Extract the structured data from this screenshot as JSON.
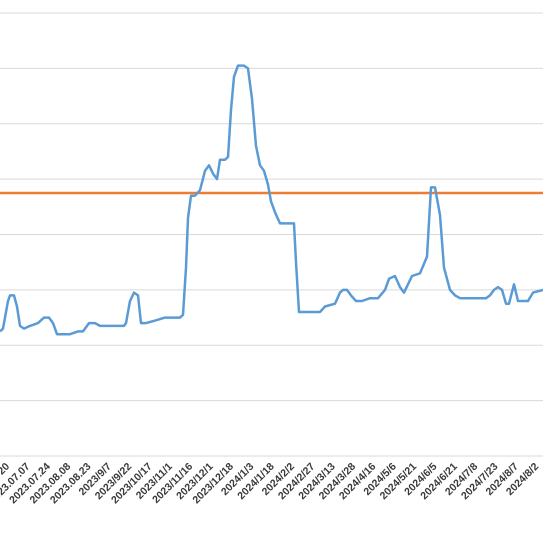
{
  "chart_data": {
    "type": "line",
    "title": "",
    "xlabel": "",
    "ylabel": "",
    "grid": true,
    "y_gridline_count": 8,
    "colors": {
      "series": "#5b9bd5",
      "reference": "#ed7d31",
      "grid": "#d9d9d9"
    },
    "x_tick_labels": [
      "20",
      "2023.07.07",
      "2023.07.24",
      "2023.08.08",
      "2023.08.23",
      "2023/9/7",
      "2023/9/22",
      "2023/10/17",
      "2023/11/1",
      "2023/11/16",
      "2023/12/1",
      "2023/12/18",
      "2024/1/3",
      "2024/1/18",
      "2024/2/2",
      "2024/2/27",
      "2024/3/13",
      "2024/3/28",
      "2024/4/16",
      "2024/5/6",
      "2024/5/21",
      "2024/6/5",
      "2024/6/21",
      "2024/7/8",
      "2024/7/23",
      "2024/8/7",
      "2024/8/2"
    ],
    "reference_line": {
      "y": 4.75
    },
    "series": [
      {
        "values": [
          [
            0,
            2.25
          ],
          [
            3,
            2.3
          ],
          [
            6,
            2.6
          ],
          [
            8,
            2.8
          ],
          [
            10,
            2.9
          ],
          [
            14,
            2.9
          ],
          [
            17,
            2.7
          ],
          [
            20,
            2.35
          ],
          [
            24,
            2.3
          ],
          [
            30,
            2.35
          ],
          [
            38,
            2.4
          ],
          [
            44,
            2.5
          ],
          [
            49,
            2.5
          ],
          [
            53,
            2.4
          ],
          [
            57,
            2.2
          ],
          [
            62,
            2.2
          ],
          [
            70,
            2.2
          ],
          [
            78,
            2.25
          ],
          [
            83,
            2.25
          ],
          [
            89,
            2.4
          ],
          [
            95,
            2.4
          ],
          [
            100,
            2.35
          ],
          [
            106,
            2.35
          ],
          [
            115,
            2.35
          ],
          [
            124,
            2.35
          ],
          [
            126,
            2.4
          ],
          [
            130,
            2.8
          ],
          [
            134,
            2.95
          ],
          [
            138,
            2.9
          ],
          [
            141,
            2.4
          ],
          [
            146,
            2.4
          ],
          [
            156,
            2.45
          ],
          [
            165,
            2.5
          ],
          [
            176,
            2.5
          ],
          [
            180,
            2.5
          ],
          [
            183,
            2.55
          ],
          [
            186,
            3.4
          ],
          [
            188,
            4.3
          ],
          [
            191,
            4.7
          ],
          [
            195,
            4.7
          ],
          [
            200,
            4.8
          ],
          [
            205,
            5.15
          ],
          [
            209,
            5.25
          ],
          [
            213,
            5.1
          ],
          [
            217,
            5.0
          ],
          [
            220,
            5.35
          ],
          [
            225,
            5.35
          ],
          [
            228,
            5.4
          ],
          [
            231,
            6.25
          ],
          [
            234,
            6.85
          ],
          [
            238,
            7.05
          ],
          [
            244,
            7.05
          ],
          [
            248,
            7.0
          ],
          [
            252,
            6.45
          ],
          [
            256,
            5.6
          ],
          [
            260,
            5.25
          ],
          [
            264,
            5.15
          ],
          [
            268,
            4.9
          ],
          [
            271,
            4.6
          ],
          [
            275,
            4.4
          ],
          [
            280,
            4.2
          ],
          [
            286,
            4.2
          ],
          [
            294,
            4.2
          ],
          [
            296,
            3.5
          ],
          [
            299,
            2.6
          ],
          [
            308,
            2.6
          ],
          [
            320,
            2.6
          ],
          [
            325,
            2.7
          ],
          [
            335,
            2.75
          ],
          [
            340,
            2.95
          ],
          [
            343,
            3.0
          ],
          [
            347,
            3.0
          ],
          [
            351,
            2.9
          ],
          [
            356,
            2.8
          ],
          [
            362,
            2.8
          ],
          [
            370,
            2.85
          ],
          [
            378,
            2.85
          ],
          [
            385,
            3.0
          ],
          [
            389,
            3.2
          ],
          [
            395,
            3.25
          ],
          [
            400,
            3.05
          ],
          [
            404,
            2.95
          ],
          [
            408,
            3.1
          ],
          [
            412,
            3.25
          ],
          [
            420,
            3.3
          ],
          [
            427,
            3.6
          ],
          [
            431,
            4.85
          ],
          [
            435,
            4.85
          ],
          [
            440,
            4.35
          ],
          [
            444,
            3.4
          ],
          [
            450,
            3.0
          ],
          [
            455,
            2.9
          ],
          [
            460,
            2.85
          ],
          [
            470,
            2.85
          ],
          [
            480,
            2.85
          ],
          [
            486,
            2.85
          ],
          [
            490,
            2.9
          ],
          [
            494,
            3.0
          ],
          [
            498,
            3.05
          ],
          [
            502,
            3.0
          ],
          [
            506,
            2.75
          ],
          [
            509,
            2.75
          ],
          [
            514,
            3.1
          ],
          [
            518,
            2.8
          ],
          [
            522,
            2.8
          ],
          [
            528,
            2.8
          ],
          [
            533,
            2.95
          ],
          [
            543,
            3.0
          ]
        ]
      }
    ]
  }
}
